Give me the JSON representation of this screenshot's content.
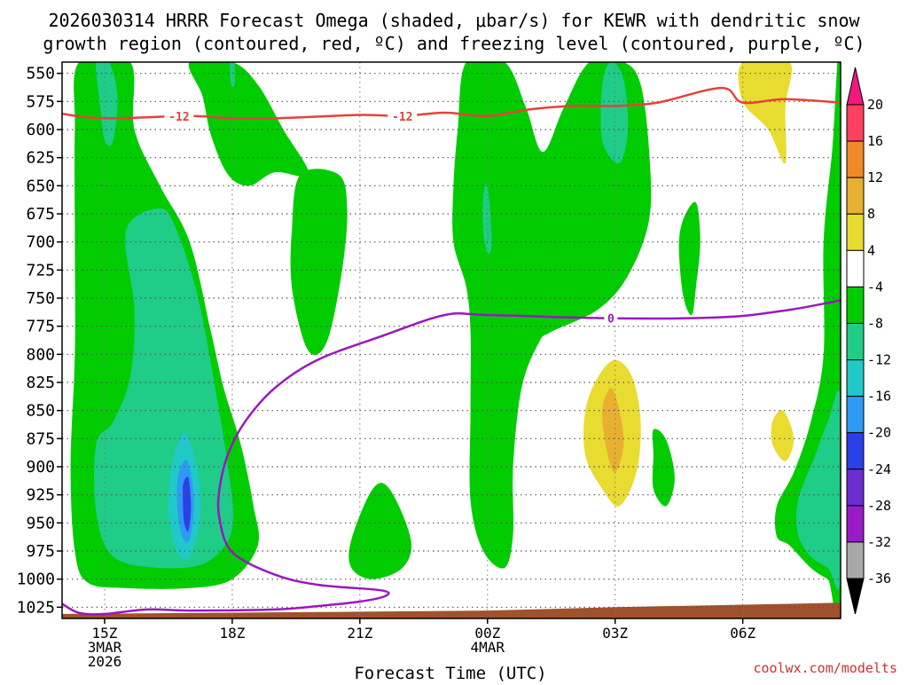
{
  "chart_data": {
    "type": "heatmap",
    "title_lines": [
      "2026030314 HRRR Forecast Omega (shaded, μbar/s) for KEWR with dendritic snow",
      "growth region (contoured, red, ºC) and freezing level (contoured, purple, ºC)"
    ],
    "xlabel": "Forecast Time (UTC)",
    "credit": "coolwx.com/modelts",
    "x_range_hours": [
      -1.0,
      17.3
    ],
    "x_ticks": [
      {
        "hour": 0,
        "lines": [
          "15Z",
          "3MAR",
          "2026"
        ]
      },
      {
        "hour": 3,
        "lines": [
          "18Z"
        ]
      },
      {
        "hour": 6,
        "lines": [
          "21Z"
        ]
      },
      {
        "hour": 9,
        "lines": [
          "00Z",
          "4MAR"
        ]
      },
      {
        "hour": 12,
        "lines": [
          "03Z"
        ]
      },
      {
        "hour": 15,
        "lines": [
          "06Z"
        ]
      }
    ],
    "y_range_hPa": [
      540,
      1035
    ],
    "y_ticks": [
      "550",
      "575",
      "600",
      "625",
      "650",
      "675",
      "700",
      "725",
      "750",
      "775",
      "800",
      "825",
      "850",
      "875",
      "900",
      "925",
      "950",
      "975",
      "1000",
      "1025"
    ],
    "colorbar": {
      "labels": [
        "20",
        "16",
        "12",
        "8",
        "4",
        "-4",
        "-8",
        "-12",
        "-16",
        "-20",
        "-24",
        "-28",
        "-32",
        "-36"
      ],
      "bins": [
        {
          "range": "16 to 20",
          "color": "#ff4060"
        },
        {
          "range": "12 to 16",
          "color": "#f08a28"
        },
        {
          "range": "8 to 12",
          "color": "#e8b030"
        },
        {
          "range": "4 to 8",
          "color": "#e8dc30"
        },
        {
          "range": "-4 to 4",
          "color": "#ffffff"
        },
        {
          "range": "-8 to -4",
          "color": "#00cc00"
        },
        {
          "range": "-12 to -8",
          "color": "#1fcc88"
        },
        {
          "range": "-16 to -12",
          "color": "#20c8c8"
        },
        {
          "range": "-20 to -16",
          "color": "#2e9af5"
        },
        {
          "range": "-24 to -20",
          "color": "#2a40e8"
        },
        {
          "range": "-28 to -24",
          "color": "#6a2ed0"
        },
        {
          "range": "-32 to -28",
          "color": "#9a1ac8"
        },
        {
          "range": "-36 to -32",
          "color": "#a8a8a8"
        }
      ],
      "top_arrow_color": "#f0187c",
      "bottom_arrow_color": "#000000"
    },
    "contours": {
      "dgz_minus12": {
        "label": "-12",
        "color": "#e8403a",
        "points": [
          [
            -1.0,
            586
          ],
          [
            0,
            590
          ],
          [
            2,
            588
          ],
          [
            3,
            590
          ],
          [
            4,
            590
          ],
          [
            6,
            587
          ],
          [
            7,
            588
          ],
          [
            8,
            585
          ],
          [
            9,
            588
          ],
          [
            10,
            582
          ],
          [
            11,
            579
          ],
          [
            12,
            579
          ],
          [
            13,
            576
          ],
          [
            14.5,
            563
          ],
          [
            15,
            576
          ],
          [
            16,
            573
          ],
          [
            17.3,
            576
          ]
        ],
        "label_hours": [
          1.75,
          7.0
        ]
      },
      "freezing_level_0": {
        "label": "0",
        "color": "#9918c0",
        "points": [
          [
            -1.0,
            1022
          ],
          [
            -0.6,
            1030
          ],
          [
            0,
            1031
          ],
          [
            1,
            1027
          ],
          [
            2,
            1028
          ],
          [
            4,
            1027
          ],
          [
            5,
            1024
          ],
          [
            6,
            1020
          ],
          [
            6.6,
            1015
          ],
          [
            6.5,
            1010
          ],
          [
            5,
            1005
          ],
          [
            4,
            996
          ],
          [
            3,
            976
          ],
          [
            2.7,
            946
          ],
          [
            2.7,
            920
          ],
          [
            2.9,
            889
          ],
          [
            3.3,
            860
          ],
          [
            4.0,
            830
          ],
          [
            5.0,
            805
          ],
          [
            6.5,
            784
          ],
          [
            8.0,
            765
          ],
          [
            9.0,
            765
          ],
          [
            12.0,
            768
          ],
          [
            14.5,
            767
          ],
          [
            16.0,
            761
          ],
          [
            17.3,
            752
          ]
        ],
        "label_hours": [
          11.9
        ]
      }
    },
    "omega_regions": [
      {
        "name": "omega-green-column-left",
        "color": "#00cc00",
        "points": [
          [
            -0.6,
            535
          ],
          [
            0.6,
            535
          ],
          [
            0.7,
            600
          ],
          [
            1.3,
            650
          ],
          [
            2.0,
            700
          ],
          [
            2.5,
            780
          ],
          [
            2.8,
            830
          ],
          [
            3.2,
            880
          ],
          [
            3.5,
            935
          ],
          [
            3.6,
            970
          ],
          [
            3.0,
            1000
          ],
          [
            2.0,
            1008
          ],
          [
            0.5,
            1008
          ],
          [
            -0.4,
            1003
          ],
          [
            -0.7,
            975
          ],
          [
            -0.8,
            900
          ],
          [
            -0.7,
            800
          ],
          [
            -0.7,
            700
          ],
          [
            -0.7,
            600
          ]
        ]
      },
      {
        "name": "omega-green-lobe-18z",
        "color": "#00cc00",
        "points": [
          [
            2.0,
            535
          ],
          [
            3.0,
            535
          ],
          [
            3.6,
            560
          ],
          [
            4.2,
            600
          ],
          [
            4.8,
            640
          ],
          [
            4.0,
            638
          ],
          [
            3.4,
            650
          ],
          [
            2.9,
            640
          ],
          [
            2.5,
            605
          ],
          [
            2.3,
            570
          ]
        ]
      },
      {
        "name": "omega-green-blob-20z",
        "color": "#00cc00",
        "points": [
          [
            4.6,
            640
          ],
          [
            5.5,
            640
          ],
          [
            5.7,
            670
          ],
          [
            5.6,
            720
          ],
          [
            5.3,
            780
          ],
          [
            5.0,
            800
          ],
          [
            4.7,
            790
          ],
          [
            4.4,
            740
          ],
          [
            4.4,
            690
          ]
        ]
      },
      {
        "name": "omega-green-blob-22z",
        "color": "#00cc00",
        "points": [
          [
            5.8,
            965
          ],
          [
            6.3,
            920
          ],
          [
            6.7,
            920
          ],
          [
            7.2,
            965
          ],
          [
            7.0,
            990
          ],
          [
            6.3,
            1000
          ],
          [
            5.8,
            990
          ]
        ]
      },
      {
        "name": "omega-green-column-midnight",
        "color": "#00cc00",
        "points": [
          [
            8.5,
            535
          ],
          [
            9.4,
            535
          ],
          [
            9.9,
            580
          ],
          [
            10.3,
            620
          ],
          [
            10.8,
            580
          ],
          [
            11.4,
            540
          ],
          [
            12.2,
            535
          ],
          [
            12.6,
            560
          ],
          [
            12.8,
            620
          ],
          [
            12.8,
            680
          ],
          [
            12.3,
            730
          ],
          [
            11.6,
            760
          ],
          [
            10.5,
            780
          ],
          [
            10.2,
            790
          ],
          [
            9.8,
            830
          ],
          [
            9.6,
            900
          ],
          [
            9.6,
            960
          ],
          [
            9.4,
            990
          ],
          [
            8.9,
            975
          ],
          [
            8.6,
            930
          ],
          [
            8.6,
            850
          ],
          [
            8.6,
            780
          ],
          [
            8.5,
            740
          ],
          [
            8.2,
            700
          ],
          [
            8.2,
            650
          ],
          [
            8.3,
            600
          ]
        ]
      },
      {
        "name": "omega-green-blob-0430z",
        "color": "#00cc00",
        "points": [
          [
            13.6,
            680
          ],
          [
            13.9,
            665
          ],
          [
            14.0,
            700
          ],
          [
            13.9,
            740
          ],
          [
            13.8,
            765
          ],
          [
            13.6,
            748
          ],
          [
            13.5,
            705
          ]
        ]
      },
      {
        "name": "omega-green-blob-0330z",
        "color": "#00cc00",
        "points": [
          [
            12.9,
            867
          ],
          [
            13.2,
            876
          ],
          [
            13.4,
            910
          ],
          [
            13.2,
            935
          ],
          [
            12.9,
            920
          ],
          [
            12.9,
            890
          ]
        ]
      },
      {
        "name": "omega-green-right-edge",
        "color": "#00cc00",
        "points": [
          [
            17.3,
            535
          ],
          [
            17.3,
            1005
          ],
          [
            17.0,
            1000
          ],
          [
            16.6,
            990
          ],
          [
            16.1,
            970
          ],
          [
            15.8,
            962
          ],
          [
            15.8,
            935
          ],
          [
            16.2,
            905
          ],
          [
            16.6,
            860
          ],
          [
            16.9,
            800
          ],
          [
            16.9,
            700
          ],
          [
            17.1,
            620
          ]
        ]
      },
      {
        "name": "omega-teal-left",
        "color": "#1fcc88",
        "points": [
          [
            0.5,
            690
          ],
          [
            1.3,
            670
          ],
          [
            1.7,
            690
          ],
          [
            2.2,
            750
          ],
          [
            2.6,
            830
          ],
          [
            2.9,
            900
          ],
          [
            3.0,
            955
          ],
          [
            2.4,
            985
          ],
          [
            1.3,
            990
          ],
          [
            0.2,
            980
          ],
          [
            -0.2,
            940
          ],
          [
            -0.2,
            880
          ],
          [
            0.2,
            860
          ],
          [
            0.6,
            820
          ],
          [
            0.7,
            760
          ]
        ]
      },
      {
        "name": "omega-teal-top-1",
        "color": "#1fcc88",
        "points": [
          [
            -0.2,
            540
          ],
          [
            0.1,
            535
          ],
          [
            0.3,
            570
          ],
          [
            0.2,
            610
          ],
          [
            0,
            610
          ],
          [
            -0.1,
            580
          ]
        ]
      },
      {
        "name": "omega-teal-top-2",
        "color": "#1fcc88",
        "points": [
          [
            2.95,
            535
          ],
          [
            3.05,
            535
          ],
          [
            3.05,
            560
          ],
          [
            2.97,
            560
          ]
        ]
      },
      {
        "name": "omega-teal-upper-right",
        "color": "#1fcc88",
        "points": [
          [
            11.7,
            560
          ],
          [
            11.9,
            540
          ],
          [
            12.2,
            555
          ],
          [
            12.3,
            600
          ],
          [
            12.1,
            630
          ],
          [
            11.7,
            610
          ]
        ]
      },
      {
        "name": "omega-teal-midnight",
        "color": "#1fcc88",
        "points": [
          [
            8.9,
            660
          ],
          [
            9.0,
            650
          ],
          [
            9.1,
            700
          ],
          [
            9.0,
            710
          ],
          [
            8.9,
            690
          ]
        ]
      },
      {
        "name": "omega-teal-right-edge",
        "color": "#1fcc88",
        "points": [
          [
            17.3,
            840
          ],
          [
            17.3,
            1000
          ],
          [
            17.0,
            990
          ],
          [
            16.6,
            980
          ],
          [
            16.3,
            960
          ],
          [
            16.3,
            930
          ],
          [
            16.7,
            890
          ],
          [
            17.0,
            860
          ]
        ]
      },
      {
        "name": "omega-cyan-core",
        "color": "#20c8c8",
        "points": [
          [
            1.6,
            895
          ],
          [
            1.9,
            870
          ],
          [
            2.2,
            905
          ],
          [
            2.25,
            945
          ],
          [
            2.0,
            980
          ],
          [
            1.7,
            975
          ],
          [
            1.5,
            940
          ]
        ]
      },
      {
        "name": "omega-blue-core",
        "color": "#2e9af5",
        "points": [
          [
            1.75,
            905
          ],
          [
            1.95,
            895
          ],
          [
            2.1,
            930
          ],
          [
            2.0,
            965
          ],
          [
            1.8,
            960
          ],
          [
            1.7,
            930
          ]
        ]
      },
      {
        "name": "omega-darkblue-core",
        "color": "#2a40e8",
        "points": [
          [
            1.85,
            915
          ],
          [
            1.97,
            910
          ],
          [
            2.03,
            935
          ],
          [
            1.97,
            957
          ],
          [
            1.87,
            950
          ],
          [
            1.84,
            932
          ]
        ]
      },
      {
        "name": "omega-yellow-0230z",
        "color": "#e8dc30",
        "points": [
          [
            11.3,
            850
          ],
          [
            11.6,
            820
          ],
          [
            12.0,
            805
          ],
          [
            12.4,
            820
          ],
          [
            12.6,
            860
          ],
          [
            12.5,
            905
          ],
          [
            12.1,
            935
          ],
          [
            11.7,
            920
          ],
          [
            11.3,
            890
          ]
        ]
      },
      {
        "name": "omega-orange-0230z",
        "color": "#e8b030",
        "points": [
          [
            11.7,
            850
          ],
          [
            11.9,
            830
          ],
          [
            12.1,
            850
          ],
          [
            12.2,
            880
          ],
          [
            12.0,
            905
          ],
          [
            11.8,
            885
          ]
        ]
      },
      {
        "name": "omega-yellow-06z-upper",
        "color": "#e8dc30",
        "points": [
          [
            15.0,
            535
          ],
          [
            16.1,
            535
          ],
          [
            16.0,
            580
          ],
          [
            16.0,
            630
          ],
          [
            15.6,
            600
          ],
          [
            15.0,
            575
          ]
        ]
      },
      {
        "name": "omega-yellow-06z-lower",
        "color": "#e8dc30",
        "points": [
          [
            15.7,
            860
          ],
          [
            15.95,
            850
          ],
          [
            16.2,
            875
          ],
          [
            16.0,
            895
          ],
          [
            15.7,
            880
          ]
        ]
      }
    ],
    "terrain": {
      "color": "#a0522d",
      "points": [
        [
          -1.0,
          1035
        ],
        [
          -1.0,
          1031
        ],
        [
          6,
          1029
        ],
        [
          9,
          1028
        ],
        [
          12,
          1025
        ],
        [
          17.3,
          1021
        ],
        [
          17.3,
          1035
        ]
      ]
    }
  }
}
